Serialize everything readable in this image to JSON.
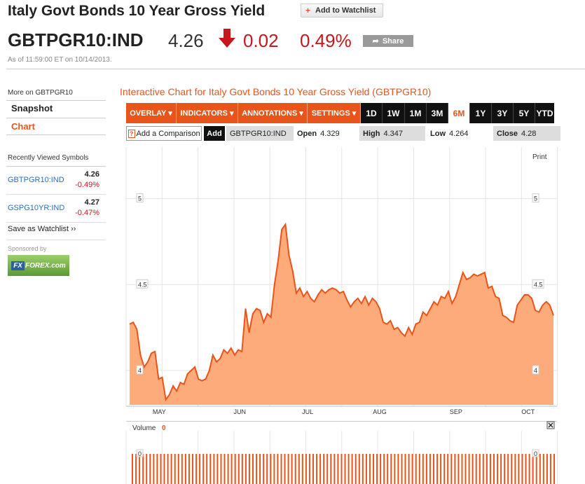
{
  "header": {
    "title": "Italy Govt Bonds 10 Year Gross Yield",
    "watchlist_label": "Add to Watchlist",
    "symbol": "GBTPGR10:IND",
    "price": "4.26",
    "change": "0.02",
    "change_pct": "0.49%",
    "share_label": "Share",
    "as_of": "As of 11:59:00 ET on 10/14/2013."
  },
  "sidebar": {
    "more_on": "More on GBTPGR10",
    "snapshot": "Snapshot",
    "chart": "Chart",
    "recent_title": "Recently Viewed Symbols",
    "recent": [
      {
        "symbol": "GBTPGR10:IND",
        "price": "4.26",
        "pct": "-0.49%"
      },
      {
        "symbol": "GSPG10YR:IND",
        "price": "4.27",
        "pct": "-0.47%"
      }
    ],
    "save_watchlist": "Save as Watchlist ››",
    "sponsored": "Sponsored by",
    "sponsor_logo": "FOREX.com"
  },
  "chart_header": {
    "title": "Interactive Chart for Italy Govt Bonds 10 Year Gross Yield (GBTPGR10)",
    "menus": [
      "OVERLAY ▾",
      "INDICATORS ▾",
      "ANNOTATIONS ▾",
      "SETTINGS ▾"
    ],
    "ranges": [
      "1D",
      "1W",
      "1M",
      "3M",
      "6M",
      "1Y",
      "3Y",
      "5Y",
      "YTD"
    ],
    "active_range": "6M",
    "compare_placeholder": "Add a Comparison",
    "compare_help": "?",
    "add_label": "Add",
    "symbol": "GBTPGR10:IND",
    "open_label": "Open",
    "open": "4.329",
    "high_label": "High",
    "high": "4.347",
    "low_label": "Low",
    "low": "4.264",
    "close_label": "Close",
    "close": "4.28",
    "print_label": "Print",
    "volume_label": "Volume",
    "volume_value": "0",
    "volume_axis_label": "0"
  },
  "colors": {
    "accent": "#e8541a",
    "negative": "#c8161d",
    "area_fill": "#fdab7a",
    "line": "#e8541a"
  },
  "chart_data": {
    "type": "area",
    "ylim": [
      3.8,
      5.3
    ],
    "yticks": [
      "4",
      "4.5",
      "5"
    ],
    "xticks": [
      "MAY",
      "JUN",
      "JUL",
      "AUG",
      "SEP",
      "OCT"
    ],
    "xtick_positions": [
      0.07,
      0.26,
      0.42,
      0.59,
      0.77,
      0.94
    ],
    "values": [
      4.27,
      4.28,
      4.24,
      4.09,
      4.02,
      4.05,
      4.1,
      4.11,
      3.95,
      3.96,
      3.83,
      3.86,
      3.91,
      3.88,
      3.93,
      3.92,
      3.98,
      4.0,
      4.02,
      3.95,
      3.94,
      3.95,
      4.0,
      4.09,
      4.05,
      4.07,
      4.12,
      4.1,
      4.13,
      4.09,
      4.12,
      4.11,
      4.36,
      4.22,
      4.33,
      4.36,
      4.35,
      4.28,
      4.33,
      4.31,
      4.5,
      4.64,
      4.82,
      4.85,
      4.67,
      4.58,
      4.45,
      4.48,
      4.43,
      4.46,
      4.42,
      4.4,
      4.44,
      4.47,
      4.45,
      4.47,
      4.48,
      4.47,
      4.45,
      4.46,
      4.41,
      4.37,
      4.4,
      4.42,
      4.39,
      4.43,
      4.38,
      4.42,
      4.4,
      4.36,
      4.28,
      4.27,
      4.29,
      4.24,
      4.25,
      4.22,
      4.2,
      4.25,
      4.21,
      4.27,
      4.28,
      4.34,
      4.32,
      4.36,
      4.4,
      4.38,
      4.43,
      4.42,
      4.46,
      4.39,
      4.43,
      4.5,
      4.57,
      4.53,
      4.54,
      4.56,
      4.55,
      4.56,
      4.57,
      4.48,
      4.49,
      4.43,
      4.42,
      4.32,
      4.31,
      4.29,
      4.28,
      4.38,
      4.41,
      4.44,
      4.44,
      4.42,
      4.35,
      4.34,
      4.38,
      4.4,
      4.38,
      4.32
    ]
  },
  "volume_data": {
    "ylim": [
      0,
      1
    ],
    "bar_count": 120
  }
}
